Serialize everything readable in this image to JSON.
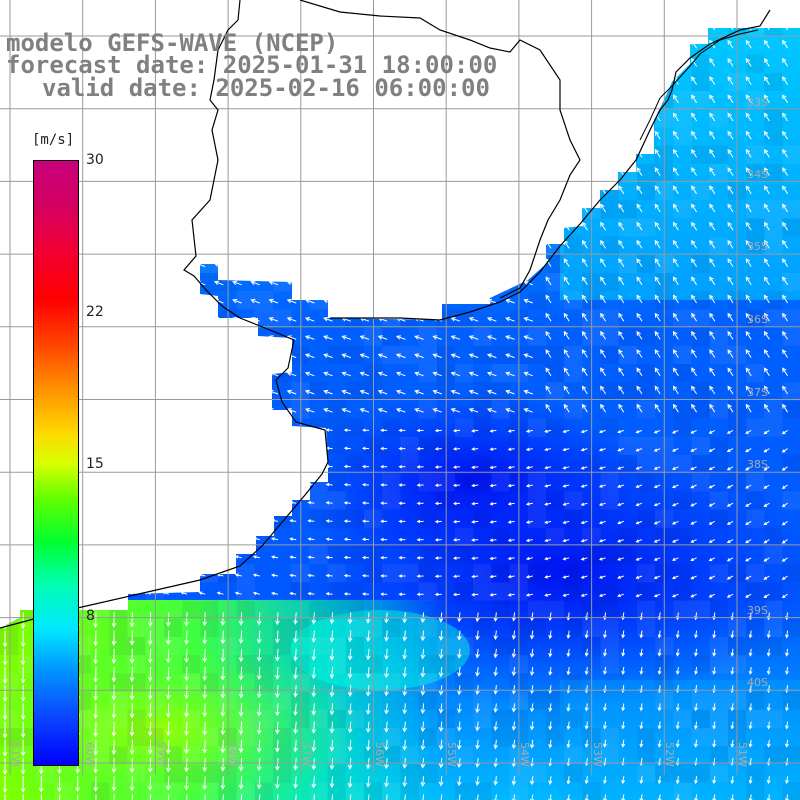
{
  "header": {
    "model": "modelo GEFS-WAVE (NCEP)",
    "forecast": "forecast date: 2025-01-31 18:00:00",
    "valid": "valid date: 2025-02-16 06:00:00"
  },
  "colorbar": {
    "unit": "[m/s]",
    "ticks": [
      "8",
      "15",
      "22",
      "30"
    ],
    "colors": [
      "#0000ff",
      "#00e8ff",
      "#00ff30",
      "#ffff00",
      "#ff8a00",
      "#ff0000",
      "#c8007a"
    ]
  },
  "grid": {
    "lat_labels": [
      "33S",
      "34S",
      "35S",
      "36S",
      "37S",
      "38S",
      "39S",
      "40S"
    ],
    "lon_labels": [
      "61W",
      "60W",
      "59W",
      "58W",
      "57W",
      "56W",
      "55W",
      "54W",
      "53W",
      "52W",
      "51W"
    ]
  },
  "map_colors": {
    "land": "#ffffff",
    "coast": "#000000",
    "grid": "#9a9a9a",
    "arrows": "#ffffff"
  }
}
